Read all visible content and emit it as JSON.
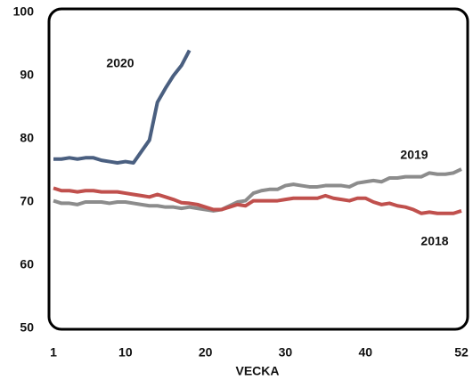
{
  "chart_data": {
    "type": "line",
    "x_label": "VECKA",
    "x": [
      1,
      2,
      3,
      4,
      5,
      6,
      7,
      8,
      9,
      10,
      11,
      12,
      13,
      14,
      15,
      16,
      17,
      18,
      19,
      20,
      21,
      22,
      23,
      24,
      25,
      26,
      27,
      28,
      29,
      30,
      31,
      32,
      33,
      34,
      35,
      36,
      37,
      38,
      39,
      40,
      41,
      42,
      43,
      44,
      45,
      46,
      47,
      48,
      49,
      50,
      51,
      52
    ],
    "series": [
      {
        "name": "2020",
        "color": "#4a5f80",
        "values": [
          76.8,
          76.8,
          77.0,
          76.8,
          77.0,
          77.0,
          76.6,
          76.4,
          76.2,
          76.4,
          76.2,
          78.0,
          79.8,
          85.8,
          88.0,
          90.0,
          91.6,
          94.0,
          null,
          null,
          null,
          null,
          null,
          null,
          null,
          null,
          null,
          null,
          null,
          null,
          null,
          null,
          null,
          null,
          null,
          null,
          null,
          null,
          null,
          null,
          null,
          null,
          null,
          null,
          null,
          null,
          null,
          null,
          null,
          null,
          null,
          null
        ]
      },
      {
        "name": "2019",
        "color": "#8c8c8c",
        "values": [
          70.2,
          69.8,
          69.8,
          69.6,
          70.0,
          70.0,
          70.0,
          69.8,
          70.0,
          70.0,
          69.8,
          69.6,
          69.4,
          69.4,
          69.2,
          69.2,
          69.0,
          69.2,
          69.0,
          68.8,
          68.6,
          68.8,
          69.4,
          70.0,
          70.2,
          71.4,
          71.8,
          72.0,
          72.0,
          72.6,
          72.8,
          72.6,
          72.4,
          72.4,
          72.6,
          72.6,
          72.6,
          72.4,
          73.0,
          73.2,
          73.4,
          73.2,
          73.8,
          73.8,
          74.0,
          74.0,
          74.0,
          74.6,
          74.4,
          74.4,
          74.6,
          75.2
        ]
      },
      {
        "name": "2018",
        "color": "#c0504d",
        "values": [
          72.2,
          71.8,
          71.8,
          71.6,
          71.8,
          71.8,
          71.6,
          71.6,
          71.6,
          71.4,
          71.2,
          71.0,
          70.8,
          71.2,
          70.8,
          70.4,
          69.9,
          69.8,
          69.6,
          69.2,
          68.8,
          68.8,
          69.2,
          69.6,
          69.4,
          70.2,
          70.2,
          70.2,
          70.2,
          70.4,
          70.6,
          70.6,
          70.6,
          70.6,
          71.0,
          70.6,
          70.4,
          70.2,
          70.6,
          70.6,
          70.0,
          69.6,
          69.8,
          69.4,
          69.2,
          68.8,
          68.2,
          68.4,
          68.2,
          68.2,
          68.2,
          68.6
        ]
      }
    ],
    "xlim": [
      1,
      52
    ],
    "xticks": [
      1,
      10,
      20,
      30,
      40,
      52
    ],
    "ylim": [
      50,
      100
    ],
    "yticks": [
      50,
      60,
      70,
      80,
      90,
      100
    ],
    "grid": false
  }
}
